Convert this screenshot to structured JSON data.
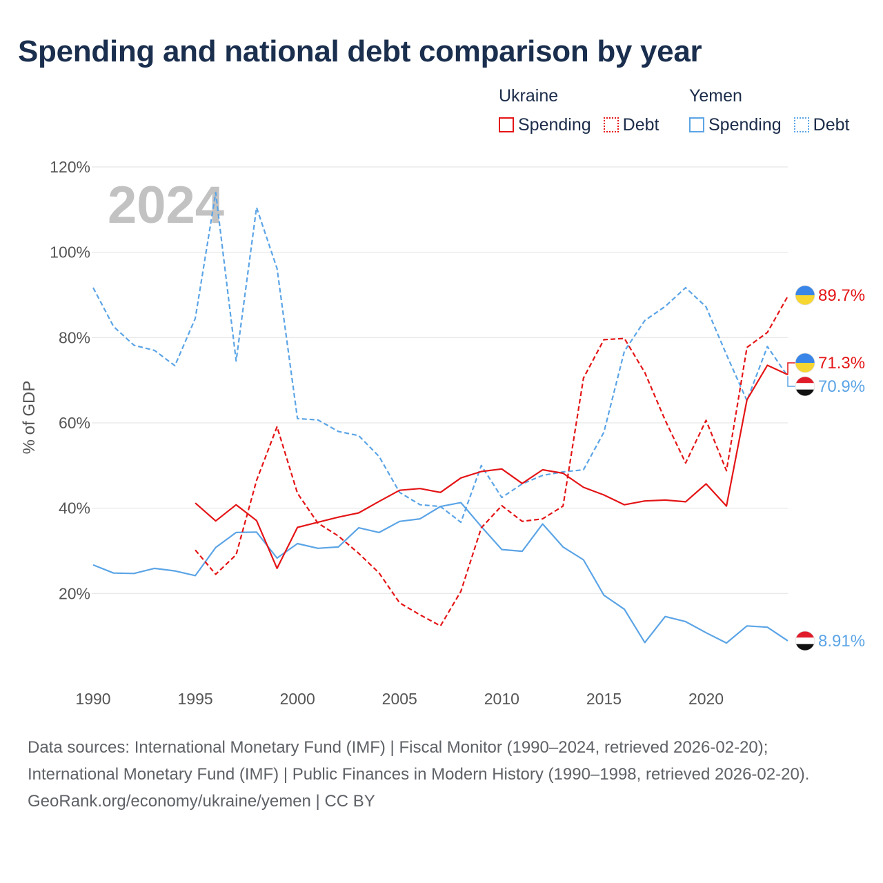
{
  "title": "Spending and national debt comparison by year",
  "legend": {
    "groups": [
      {
        "country": "Ukraine",
        "items": [
          {
            "label": "Spending"
          },
          {
            "label": "Debt"
          }
        ]
      },
      {
        "country": "Yemen",
        "items": [
          {
            "label": "Spending"
          },
          {
            "label": "Debt"
          }
        ]
      }
    ]
  },
  "colors": {
    "ukraine": "#e41416",
    "yemen": "#5ba4e6",
    "year_watermark": "#c2c2c2",
    "grid": "#e6e6e6"
  },
  "chart_data": {
    "type": "line",
    "year_label": "2024",
    "ylabel": "% of GDP",
    "xlim": [
      1990,
      2024
    ],
    "ylim": [
      0,
      120
    ],
    "x_ticks": [
      1990,
      1995,
      2000,
      2005,
      2010,
      2015,
      2020
    ],
    "y_ticks": [
      {
        "value": 20,
        "label": "20%"
      },
      {
        "value": 40,
        "label": "40%"
      },
      {
        "value": 60,
        "label": "60%"
      },
      {
        "value": 80,
        "label": "80%"
      },
      {
        "value": 100,
        "label": "100%"
      },
      {
        "value": 120,
        "label": "120%"
      }
    ],
    "series": [
      {
        "key": "yemen-debt",
        "name": "Yemen Debt",
        "country": "yemen",
        "style": "dashed",
        "x": [
          1990,
          1991,
          1992,
          1993,
          1994,
          1995,
          1996,
          1997,
          1998,
          1999,
          2000,
          2001,
          2002,
          2003,
          2004,
          2005,
          2006,
          2007,
          2008,
          2009,
          2010,
          2011,
          2012,
          2013,
          2014,
          2015,
          2016,
          2017,
          2018,
          2019,
          2020,
          2021,
          2022,
          2023,
          2024
        ],
        "values": [
          91.7,
          82.6,
          78.2,
          77,
          73.4,
          84.5,
          114,
          74.5,
          110.5,
          96.2,
          61,
          60.7,
          58,
          57,
          52.1,
          43.7,
          40.8,
          40.4,
          36.7,
          50,
          42.5,
          45.7,
          47.7,
          48.5,
          49,
          57.8,
          76.8,
          84,
          87.3,
          91.7,
          87.2,
          76,
          65.2,
          77.9,
          70.9
        ]
      },
      {
        "key": "yemen-spending",
        "name": "Yemen Spending",
        "country": "yemen",
        "style": "solid",
        "x": [
          1990,
          1991,
          1992,
          1993,
          1994,
          1995,
          1996,
          1997,
          1998,
          1999,
          2000,
          2001,
          2002,
          2003,
          2004,
          2005,
          2006,
          2007,
          2008,
          2009,
          2010,
          2011,
          2012,
          2013,
          2014,
          2015,
          2016,
          2017,
          2018,
          2019,
          2020,
          2021,
          2022,
          2023,
          2024
        ],
        "values": [
          26.7,
          24.8,
          24.7,
          25.9,
          25.3,
          24.2,
          30.8,
          34.3,
          34.4,
          28.3,
          31.7,
          30.6,
          30.9,
          35.4,
          34.3,
          36.9,
          37.5,
          40.4,
          41.3,
          35.7,
          30.3,
          29.9,
          36.3,
          30.9,
          27.9,
          19.6,
          16.3,
          8.5,
          14.6,
          13.4,
          10.8,
          8.4,
          12.4,
          12.1,
          8.91
        ]
      },
      {
        "key": "ukraine-debt",
        "name": "Ukraine Debt",
        "country": "ukraine",
        "style": "dashed",
        "x": [
          1995,
          1996,
          1997,
          1998,
          1999,
          2000,
          2001,
          2002,
          2003,
          2004,
          2005,
          2006,
          2007,
          2008,
          2009,
          2010,
          2011,
          2012,
          2013,
          2014,
          2015,
          2016,
          2017,
          2018,
          2019,
          2020,
          2021,
          2022,
          2023,
          2024
        ],
        "values": [
          30.2,
          24.5,
          29.1,
          46.5,
          59.1,
          43.5,
          36.5,
          33.5,
          29.4,
          24.8,
          17.8,
          15,
          12.4,
          20.5,
          35.4,
          40.6,
          36.9,
          37.5,
          40.5,
          70.5,
          79.5,
          79.8,
          71.8,
          60.6,
          50.6,
          60.6,
          48.8,
          77.7,
          81.2,
          89.7
        ]
      },
      {
        "key": "ukraine-spending",
        "name": "Ukraine Spending",
        "country": "ukraine",
        "style": "solid",
        "x": [
          1995,
          1996,
          1997,
          1998,
          1999,
          2000,
          2001,
          2002,
          2003,
          2004,
          2005,
          2006,
          2007,
          2008,
          2009,
          2010,
          2011,
          2012,
          2013,
          2014,
          2015,
          2016,
          2017,
          2018,
          2019,
          2020,
          2021,
          2022,
          2023,
          2024
        ],
        "values": [
          41.2,
          37,
          40.8,
          37.1,
          25.9,
          35.5,
          36.7,
          37.9,
          38.9,
          41.6,
          44.2,
          44.6,
          43.7,
          47.1,
          48.6,
          49.2,
          45.8,
          49,
          48.2,
          44.9,
          43.1,
          40.8,
          41.7,
          41.9,
          41.5,
          45.7,
          40.5,
          65.4,
          73.5,
          71.3
        ]
      }
    ],
    "end_labels": [
      {
        "series": "ukraine-debt",
        "text": "89.7%",
        "country": "ukraine",
        "flag": "ukraine-flag-icon"
      },
      {
        "series": "ukraine-spending",
        "text": "71.3%",
        "country": "ukraine",
        "flag": "ukraine-flag-icon"
      },
      {
        "series": "yemen-debt",
        "text": "70.9%",
        "country": "yemen",
        "flag": "yemen-flag-icon"
      },
      {
        "series": "yemen-spending",
        "text": "8.91%",
        "country": "yemen",
        "flag": "yemen-flag-icon"
      }
    ]
  },
  "footer": {
    "sources": "Data sources: International Monetary Fund (IMF) | Fiscal Monitor (1990–2024, retrieved 2026-02-20); International Monetary Fund (IMF) | Public Finances in Modern History (1990–1998, retrieved 2026-02-20).",
    "credit": "GeoRank.org/economy/ukraine/yemen | CC BY"
  }
}
